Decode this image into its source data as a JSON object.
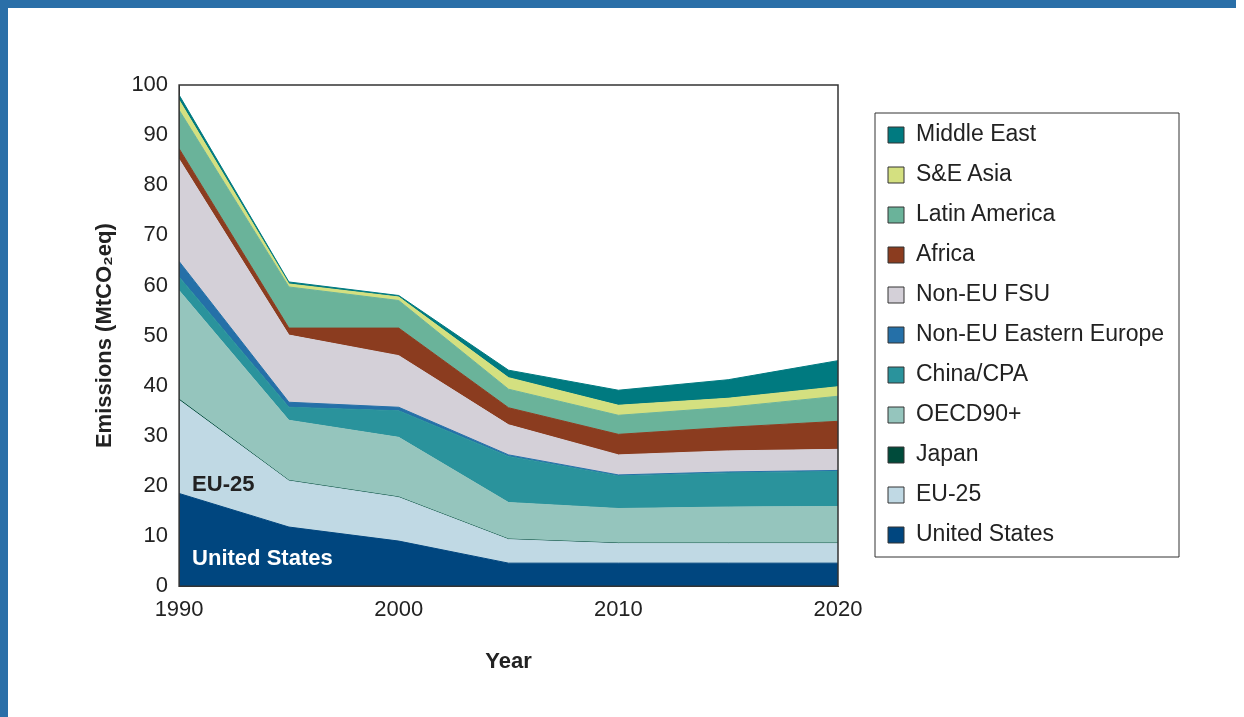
{
  "chart_data": {
    "type": "area",
    "stacked": true,
    "xlabel": "Year",
    "ylabel": "Emissions (MtCO₂eq)",
    "x": [
      1990,
      1995,
      2000,
      2005,
      2010,
      2015,
      2020
    ],
    "xlim": [
      1990,
      2020
    ],
    "xticks": [
      1990,
      2000,
      2010,
      2020
    ],
    "ylim": [
      0,
      100
    ],
    "yticks": [
      0,
      10,
      20,
      30,
      40,
      50,
      60,
      70,
      80,
      90,
      100
    ],
    "grid": false,
    "legend": "right",
    "marker": "none",
    "series": [
      {
        "name": "United States",
        "color": "#00467f",
        "values": [
          18.5,
          11.8,
          9.0,
          4.6,
          4.6,
          4.6,
          4.6
        ]
      },
      {
        "name": "EU-25",
        "color": "#c0d9e4",
        "values": [
          18.6,
          9.2,
          8.7,
          4.7,
          3.9,
          3.9,
          3.9
        ]
      },
      {
        "name": "Japan",
        "color": "#004b3b",
        "values": [
          0.2,
          0.1,
          0.1,
          0.1,
          0.1,
          0.1,
          0.1
        ]
      },
      {
        "name": "OECD90+",
        "color": "#95c5bd",
        "values": [
          21.7,
          12.0,
          11.9,
          7.3,
          6.9,
          7.2,
          7.3
        ]
      },
      {
        "name": "China/CPA",
        "color": "#2a939c",
        "values": [
          2.7,
          2.6,
          5.3,
          9.2,
          6.5,
          6.8,
          7.0
        ]
      },
      {
        "name": "Non-EU Eastern Europe",
        "color": "#2570a8",
        "values": [
          3.1,
          1.0,
          0.7,
          0.3,
          0.2,
          0.2,
          0.2
        ]
      },
      {
        "name": "Non-EU FSU",
        "color": "#d4d0d8",
        "values": [
          20.4,
          13.4,
          10.3,
          6.0,
          4.0,
          4.2,
          4.2
        ]
      },
      {
        "name": "Africa",
        "color": "#8b3c1f",
        "values": [
          2.1,
          1.4,
          5.5,
          3.4,
          4.1,
          4.7,
          5.6
        ]
      },
      {
        "name": "Latin America",
        "color": "#6ab39a",
        "values": [
          7.7,
          8.2,
          5.5,
          3.7,
          3.8,
          4.0,
          5.0
        ]
      },
      {
        "name": "S&E Asia",
        "color": "#d4e080",
        "values": [
          2.0,
          0.6,
          0.7,
          2.3,
          2.0,
          1.8,
          1.9
        ]
      },
      {
        "name": "Middle East",
        "color": "#007a80",
        "values": [
          1.0,
          0.4,
          0.3,
          1.5,
          3.0,
          3.7,
          5.2
        ]
      }
    ],
    "annotations": [
      "United States",
      "EU-25"
    ]
  }
}
